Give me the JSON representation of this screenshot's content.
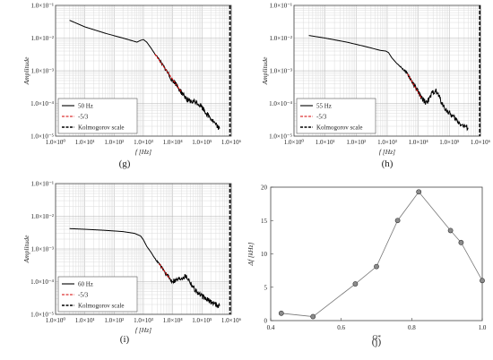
{
  "chart_data": [
    {
      "id": "g",
      "type": "line",
      "panel_label": "(g)",
      "xscale": "log",
      "yscale": "log",
      "xlabel": "f [Hz]",
      "ylabel": "Amplitude",
      "xlim": [
        1,
        1000000
      ],
      "ylim": [
        1e-05,
        0.1
      ],
      "xticks": [
        "1.0×10⁰",
        "1.0×10¹",
        "1.0×10²",
        "1.0×10³",
        "1.0×10⁴",
        "1.0×10⁵",
        "1.0×10⁶"
      ],
      "yticks": [
        "1.0×10⁻⁵",
        "1.0×10⁻⁴",
        "1.0×10⁻³",
        "1.0×10⁻²",
        "1.0×10⁻¹"
      ],
      "grid": true,
      "legend": "bottom-left",
      "kolmogorov_f": 900000,
      "series": [
        {
          "name": "50 Hz",
          "color": "#000000",
          "style": "solid",
          "noisy": true,
          "x": [
            3,
            10,
            50,
            200,
            600,
            800,
            1000,
            1300,
            1800,
            2500,
            3500,
            5000,
            7000,
            10000,
            14000,
            20000,
            30000,
            40000,
            60000,
            90000,
            140000,
            200000,
            300000,
            400000
          ],
          "y": [
            0.035,
            0.022,
            0.014,
            0.01,
            0.0075,
            0.0085,
            0.009,
            0.0075,
            0.005,
            0.0032,
            0.0022,
            0.0013,
            0.0008,
            0.0005,
            0.00035,
            0.00022,
            0.00014,
            0.00011,
            0.00011,
            8.5e-05,
            5e-05,
            3.5e-05,
            2.2e-05,
            1.7e-05
          ]
        },
        {
          "name": "-5/3",
          "color": "#d40000",
          "style": "dashed",
          "x": [
            2500,
            20000
          ],
          "y": [
            0.0032,
            0.00022
          ]
        },
        {
          "name": "Kolmogorov scale",
          "color": "#000000",
          "style": "dashed-vertical"
        }
      ]
    },
    {
      "id": "h",
      "type": "line",
      "panel_label": "(h)",
      "xscale": "log",
      "yscale": "log",
      "xlabel": "f [Hz]",
      "ylabel": "Amplitude",
      "xlim": [
        1,
        1000000
      ],
      "ylim": [
        1e-05,
        0.1
      ],
      "xticks": [
        "1.0×10⁰",
        "1.0×10¹",
        "1.0×10²",
        "1.0×10³",
        "1.0×10⁴",
        "1.0×10⁵",
        "1.0×10⁶"
      ],
      "yticks": [
        "1.0×10⁻⁵",
        "1.0×10⁻⁴",
        "1.0×10⁻³",
        "1.0×10⁻²",
        "1.0×10⁻¹"
      ],
      "grid": true,
      "legend": "bottom-left",
      "kolmogorov_f": 950000,
      "series": [
        {
          "name": "55 Hz",
          "color": "#000000",
          "style": "solid",
          "noisy": true,
          "x": [
            3,
            10,
            50,
            200,
            600,
            900,
            1100,
            1400,
            2000,
            3000,
            4500,
            6000,
            8000,
            10000,
            13000,
            17000,
            22000,
            28000,
            35000,
            45000,
            60000,
            90000,
            150000,
            250000,
            400000
          ],
          "y": [
            0.012,
            0.01,
            0.0075,
            0.0055,
            0.0042,
            0.004,
            0.0036,
            0.0025,
            0.0017,
            0.0012,
            0.0008,
            0.0005,
            0.00032,
            0.00022,
            0.00014,
            0.00011,
            0.00013,
            0.00021,
            0.00025,
            0.00018,
            9e-05,
            5.5e-05,
            3.5e-05,
            2.2e-05,
            1.8e-05
          ]
        },
        {
          "name": "-5/3",
          "color": "#d40000",
          "style": "dashed",
          "x": [
            4500,
            13000
          ],
          "y": [
            0.0008,
            0.00014
          ]
        },
        {
          "name": "Kolmogorov scale",
          "color": "#000000",
          "style": "dashed-vertical"
        }
      ]
    },
    {
      "id": "i",
      "type": "line",
      "panel_label": "(i)",
      "xscale": "log",
      "yscale": "log",
      "xlabel": "f [Hz]",
      "ylabel": "Amplitude",
      "xlim": [
        1,
        1000000
      ],
      "ylim": [
        1e-05,
        0.1
      ],
      "xticks": [
        "1.0×10⁰",
        "1.0×10¹",
        "1.0×10²",
        "1.0×10³",
        "1.0×10⁴",
        "1.0×10⁵",
        "1.0×10⁶"
      ],
      "yticks": [
        "1.0×10⁻⁵",
        "1.0×10⁻⁴",
        "1.0×10⁻³",
        "1.0×10⁻²",
        "1.0×10⁻¹"
      ],
      "grid": true,
      "legend": "bottom-left",
      "kolmogorov_f": 900000,
      "series": [
        {
          "name": "60 Hz",
          "color": "#000000",
          "style": "solid",
          "noisy": true,
          "x": [
            3,
            10,
            50,
            200,
            500,
            800,
            1000,
            1300,
            1800,
            2500,
            3500,
            5000,
            7000,
            9000,
            12000,
            16000,
            22000,
            28000,
            35000,
            45000,
            60000,
            90000,
            150000,
            250000,
            400000
          ],
          "y": [
            0.0042,
            0.004,
            0.0037,
            0.0034,
            0.003,
            0.0025,
            0.0019,
            0.0012,
            0.0008,
            0.0005,
            0.00035,
            0.00022,
            0.00014,
            0.00011,
            0.00011,
            0.00012,
            0.00014,
            0.00015,
            0.00012,
            8e-05,
            5.5e-05,
            3.8e-05,
            2.8e-05,
            2.2e-05,
            1.8e-05
          ]
        },
        {
          "name": "-5/3",
          "color": "#d40000",
          "style": "dashed",
          "x": [
            3500,
            8000
          ],
          "y": [
            0.00035,
            0.00012
          ]
        },
        {
          "name": "Kolmogorov scale",
          "color": "#000000",
          "style": "dashed-vertical"
        }
      ]
    },
    {
      "id": "j",
      "type": "scatter",
      "panel_label": "(j)",
      "xlabel": "Q*",
      "ylabel": "Δf [kHz]",
      "xlim": [
        0.4,
        1.0
      ],
      "ylim": [
        0,
        20
      ],
      "xticks": [
        0.4,
        0.6,
        0.8,
        1.0
      ],
      "xtick_labels": [
        "0.4",
        "0.6",
        "0.8",
        "1.0"
      ],
      "yticks": [
        0,
        5,
        10,
        15,
        20
      ],
      "ytick_labels": [
        "0",
        "5",
        "10",
        "15",
        "20"
      ],
      "grid": false,
      "connected": true,
      "marker_color": "#8c8c8c",
      "series": [
        {
          "x": [
            0.43,
            0.52,
            0.64,
            0.7,
            0.76,
            0.82,
            0.91,
            0.94,
            1.0
          ],
          "y": [
            1.1,
            0.6,
            5.5,
            8.1,
            15.0,
            19.3,
            13.5,
            11.7,
            6.0
          ]
        }
      ]
    }
  ]
}
